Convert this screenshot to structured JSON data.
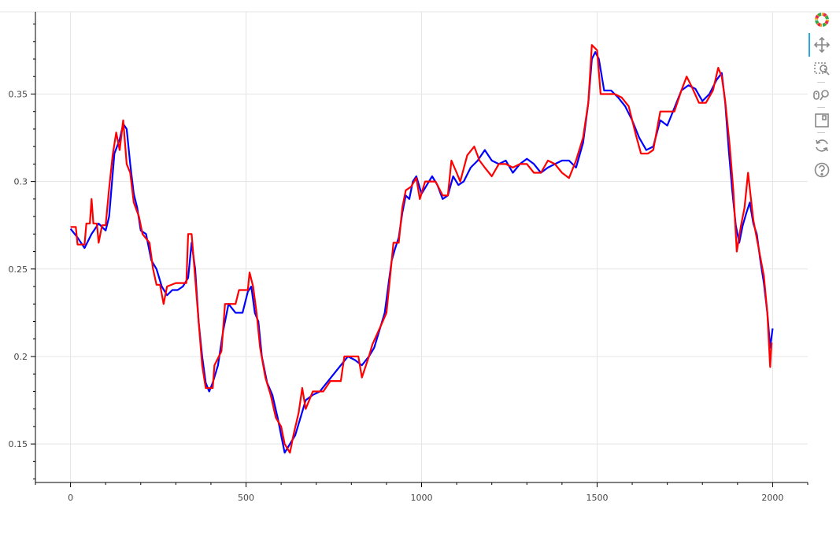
{
  "chart_data": {
    "type": "line",
    "title": "",
    "xlabel": "",
    "ylabel": "",
    "xlim": [
      -100,
      2100
    ],
    "ylim": [
      0.128,
      0.397
    ],
    "x_ticks": [
      0,
      500,
      1000,
      1500,
      2000
    ],
    "y_ticks": [
      0.15,
      0.2,
      0.25,
      0.3,
      0.35
    ],
    "x_tick_labels": [
      "0",
      "500",
      "1000",
      "1500",
      "2000"
    ],
    "y_tick_labels": [
      "0.15",
      "0.2",
      "0.25",
      "0.3",
      "0.35"
    ],
    "grid": true,
    "legend": "none",
    "series": [
      {
        "color": "#0000ff",
        "points": [
          [
            0,
            0.273
          ],
          [
            20,
            0.268
          ],
          [
            40,
            0.262
          ],
          [
            60,
            0.27
          ],
          [
            80,
            0.276
          ],
          [
            100,
            0.272
          ],
          [
            110,
            0.28
          ],
          [
            125,
            0.316
          ],
          [
            140,
            0.324
          ],
          [
            150,
            0.333
          ],
          [
            160,
            0.33
          ],
          [
            170,
            0.31
          ],
          [
            180,
            0.293
          ],
          [
            190,
            0.285
          ],
          [
            200,
            0.272
          ],
          [
            215,
            0.27
          ],
          [
            230,
            0.255
          ],
          [
            245,
            0.25
          ],
          [
            260,
            0.24
          ],
          [
            275,
            0.235
          ],
          [
            290,
            0.238
          ],
          [
            305,
            0.238
          ],
          [
            320,
            0.24
          ],
          [
            335,
            0.245
          ],
          [
            345,
            0.265
          ],
          [
            355,
            0.25
          ],
          [
            365,
            0.22
          ],
          [
            375,
            0.2
          ],
          [
            385,
            0.185
          ],
          [
            395,
            0.18
          ],
          [
            405,
            0.185
          ],
          [
            420,
            0.195
          ],
          [
            435,
            0.215
          ],
          [
            450,
            0.23
          ],
          [
            470,
            0.225
          ],
          [
            490,
            0.225
          ],
          [
            505,
            0.237
          ],
          [
            515,
            0.24
          ],
          [
            525,
            0.225
          ],
          [
            535,
            0.22
          ],
          [
            545,
            0.2
          ],
          [
            560,
            0.185
          ],
          [
            575,
            0.178
          ],
          [
            590,
            0.165
          ],
          [
            600,
            0.155
          ],
          [
            610,
            0.145
          ],
          [
            625,
            0.15
          ],
          [
            640,
            0.155
          ],
          [
            655,
            0.165
          ],
          [
            670,
            0.175
          ],
          [
            690,
            0.178
          ],
          [
            710,
            0.18
          ],
          [
            730,
            0.185
          ],
          [
            750,
            0.19
          ],
          [
            770,
            0.195
          ],
          [
            790,
            0.2
          ],
          [
            810,
            0.198
          ],
          [
            830,
            0.195
          ],
          [
            850,
            0.2
          ],
          [
            865,
            0.205
          ],
          [
            880,
            0.215
          ],
          [
            895,
            0.225
          ],
          [
            905,
            0.24
          ],
          [
            915,
            0.255
          ],
          [
            925,
            0.262
          ],
          [
            935,
            0.268
          ],
          [
            945,
            0.282
          ],
          [
            955,
            0.292
          ],
          [
            965,
            0.29
          ],
          [
            975,
            0.3
          ],
          [
            985,
            0.303
          ],
          [
            1000,
            0.293
          ],
          [
            1015,
            0.298
          ],
          [
            1030,
            0.303
          ],
          [
            1045,
            0.298
          ],
          [
            1060,
            0.29
          ],
          [
            1075,
            0.292
          ],
          [
            1090,
            0.303
          ],
          [
            1105,
            0.298
          ],
          [
            1120,
            0.3
          ],
          [
            1140,
            0.308
          ],
          [
            1160,
            0.312
          ],
          [
            1180,
            0.318
          ],
          [
            1200,
            0.312
          ],
          [
            1220,
            0.31
          ],
          [
            1240,
            0.312
          ],
          [
            1260,
            0.305
          ],
          [
            1280,
            0.31
          ],
          [
            1300,
            0.313
          ],
          [
            1320,
            0.31
          ],
          [
            1340,
            0.305
          ],
          [
            1360,
            0.308
          ],
          [
            1380,
            0.31
          ],
          [
            1400,
            0.312
          ],
          [
            1420,
            0.312
          ],
          [
            1440,
            0.308
          ],
          [
            1460,
            0.322
          ],
          [
            1475,
            0.345
          ],
          [
            1485,
            0.37
          ],
          [
            1495,
            0.374
          ],
          [
            1505,
            0.37
          ],
          [
            1520,
            0.352
          ],
          [
            1540,
            0.352
          ],
          [
            1560,
            0.348
          ],
          [
            1580,
            0.343
          ],
          [
            1600,
            0.335
          ],
          [
            1620,
            0.325
          ],
          [
            1640,
            0.318
          ],
          [
            1660,
            0.32
          ],
          [
            1680,
            0.335
          ],
          [
            1700,
            0.332
          ],
          [
            1720,
            0.342
          ],
          [
            1740,
            0.352
          ],
          [
            1760,
            0.355
          ],
          [
            1780,
            0.353
          ],
          [
            1800,
            0.346
          ],
          [
            1820,
            0.35
          ],
          [
            1840,
            0.358
          ],
          [
            1855,
            0.362
          ],
          [
            1865,
            0.345
          ],
          [
            1875,
            0.318
          ],
          [
            1885,
            0.295
          ],
          [
            1895,
            0.275
          ],
          [
            1905,
            0.265
          ],
          [
            1915,
            0.275
          ],
          [
            1925,
            0.282
          ],
          [
            1935,
            0.288
          ],
          [
            1945,
            0.276
          ],
          [
            1955,
            0.27
          ],
          [
            1965,
            0.255
          ],
          [
            1975,
            0.242
          ],
          [
            1985,
            0.225
          ],
          [
            1993,
            0.205
          ],
          [
            2000,
            0.216
          ]
        ]
      },
      {
        "color": "#ff0000",
        "points": [
          [
            0,
            0.274
          ],
          [
            15,
            0.274
          ],
          [
            20,
            0.264
          ],
          [
            40,
            0.264
          ],
          [
            45,
            0.276
          ],
          [
            55,
            0.276
          ],
          [
            60,
            0.29
          ],
          [
            65,
            0.276
          ],
          [
            75,
            0.276
          ],
          [
            80,
            0.265
          ],
          [
            90,
            0.275
          ],
          [
            100,
            0.275
          ],
          [
            110,
            0.296
          ],
          [
            120,
            0.315
          ],
          [
            130,
            0.328
          ],
          [
            140,
            0.318
          ],
          [
            150,
            0.335
          ],
          [
            160,
            0.31
          ],
          [
            170,
            0.305
          ],
          [
            180,
            0.288
          ],
          [
            195,
            0.28
          ],
          [
            205,
            0.27
          ],
          [
            225,
            0.265
          ],
          [
            235,
            0.25
          ],
          [
            245,
            0.241
          ],
          [
            255,
            0.241
          ],
          [
            265,
            0.23
          ],
          [
            275,
            0.24
          ],
          [
            300,
            0.242
          ],
          [
            320,
            0.242
          ],
          [
            330,
            0.242
          ],
          [
            335,
            0.27
          ],
          [
            345,
            0.27
          ],
          [
            355,
            0.245
          ],
          [
            365,
            0.22
          ],
          [
            375,
            0.195
          ],
          [
            385,
            0.182
          ],
          [
            405,
            0.182
          ],
          [
            410,
            0.195
          ],
          [
            430,
            0.203
          ],
          [
            440,
            0.23
          ],
          [
            470,
            0.23
          ],
          [
            480,
            0.238
          ],
          [
            505,
            0.238
          ],
          [
            510,
            0.248
          ],
          [
            520,
            0.24
          ],
          [
            530,
            0.225
          ],
          [
            540,
            0.205
          ],
          [
            555,
            0.188
          ],
          [
            570,
            0.178
          ],
          [
            585,
            0.165
          ],
          [
            600,
            0.16
          ],
          [
            610,
            0.15
          ],
          [
            625,
            0.145
          ],
          [
            635,
            0.155
          ],
          [
            650,
            0.168
          ],
          [
            660,
            0.182
          ],
          [
            670,
            0.17
          ],
          [
            690,
            0.18
          ],
          [
            720,
            0.18
          ],
          [
            740,
            0.186
          ],
          [
            770,
            0.186
          ],
          [
            780,
            0.2
          ],
          [
            820,
            0.2
          ],
          [
            830,
            0.188
          ],
          [
            850,
            0.2
          ],
          [
            860,
            0.207
          ],
          [
            885,
            0.218
          ],
          [
            900,
            0.225
          ],
          [
            910,
            0.245
          ],
          [
            920,
            0.265
          ],
          [
            935,
            0.265
          ],
          [
            945,
            0.285
          ],
          [
            955,
            0.295
          ],
          [
            970,
            0.297
          ],
          [
            985,
            0.302
          ],
          [
            995,
            0.29
          ],
          [
            1010,
            0.3
          ],
          [
            1025,
            0.3
          ],
          [
            1040,
            0.3
          ],
          [
            1060,
            0.292
          ],
          [
            1075,
            0.292
          ],
          [
            1085,
            0.312
          ],
          [
            1100,
            0.305
          ],
          [
            1110,
            0.3
          ],
          [
            1130,
            0.315
          ],
          [
            1150,
            0.32
          ],
          [
            1165,
            0.312
          ],
          [
            1180,
            0.308
          ],
          [
            1200,
            0.303
          ],
          [
            1220,
            0.31
          ],
          [
            1240,
            0.31
          ],
          [
            1260,
            0.308
          ],
          [
            1280,
            0.31
          ],
          [
            1300,
            0.31
          ],
          [
            1320,
            0.305
          ],
          [
            1340,
            0.305
          ],
          [
            1360,
            0.312
          ],
          [
            1380,
            0.31
          ],
          [
            1400,
            0.305
          ],
          [
            1420,
            0.302
          ],
          [
            1440,
            0.312
          ],
          [
            1460,
            0.325
          ],
          [
            1475,
            0.345
          ],
          [
            1485,
            0.378
          ],
          [
            1500,
            0.375
          ],
          [
            1510,
            0.35
          ],
          [
            1530,
            0.35
          ],
          [
            1550,
            0.35
          ],
          [
            1570,
            0.348
          ],
          [
            1590,
            0.343
          ],
          [
            1610,
            0.327
          ],
          [
            1625,
            0.316
          ],
          [
            1645,
            0.316
          ],
          [
            1660,
            0.318
          ],
          [
            1680,
            0.34
          ],
          [
            1700,
            0.34
          ],
          [
            1720,
            0.34
          ],
          [
            1740,
            0.352
          ],
          [
            1755,
            0.36
          ],
          [
            1770,
            0.354
          ],
          [
            1790,
            0.345
          ],
          [
            1810,
            0.345
          ],
          [
            1830,
            0.352
          ],
          [
            1845,
            0.365
          ],
          [
            1855,
            0.36
          ],
          [
            1865,
            0.346
          ],
          [
            1878,
            0.32
          ],
          [
            1888,
            0.295
          ],
          [
            1898,
            0.26
          ],
          [
            1910,
            0.275
          ],
          [
            1920,
            0.285
          ],
          [
            1930,
            0.305
          ],
          [
            1945,
            0.278
          ],
          [
            1960,
            0.262
          ],
          [
            1975,
            0.246
          ],
          [
            1985,
            0.225
          ],
          [
            1993,
            0.194
          ],
          [
            1997,
            0.208
          ]
        ]
      }
    ]
  },
  "toolbar": {
    "logo_icon": "bokeh-logo-icon",
    "tools": [
      "pan-icon",
      "box-zoom-icon",
      "wheel-zoom-icon",
      "save-icon",
      "reset-icon",
      "help-icon"
    ],
    "active_tool": "pan-icon",
    "active_color": "#26aae1",
    "icon_color": "#888888"
  }
}
